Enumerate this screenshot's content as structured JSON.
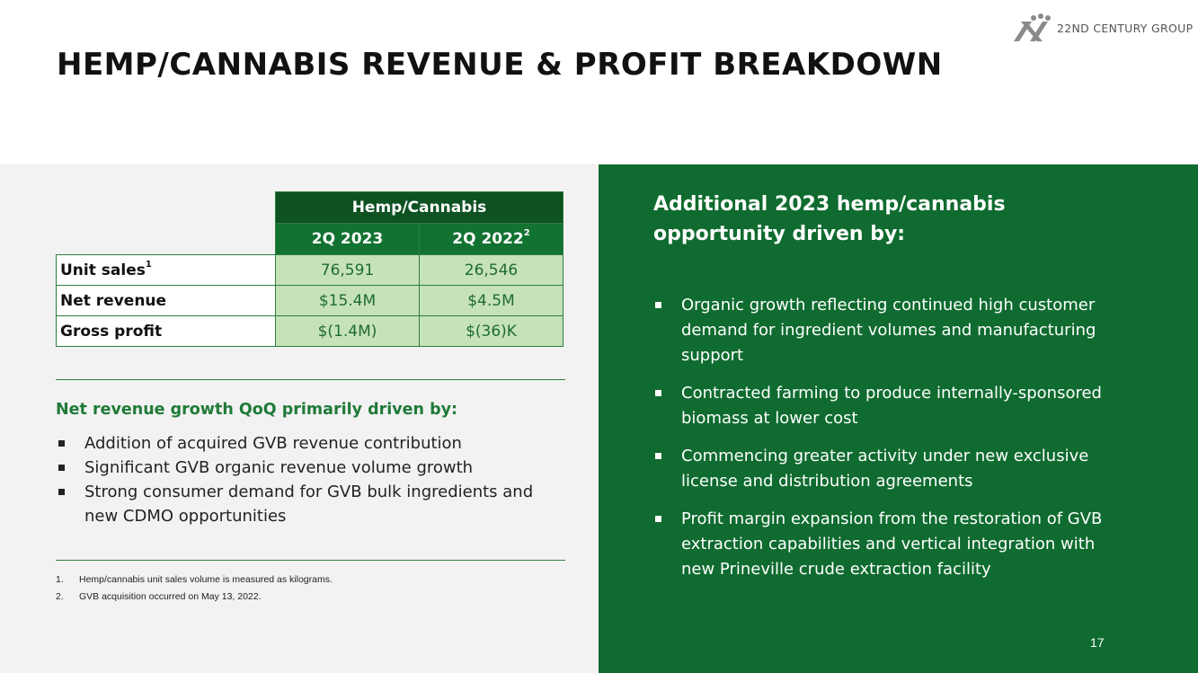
{
  "header": {
    "title": "HEMP/CANNABIS REVENUE & PROFIT BREAKDOWN",
    "logo_text": "22ND CENTURY GROUP"
  },
  "table": {
    "group_header": "Hemp/Cannabis",
    "columns": [
      {
        "label": "2Q 2023",
        "sup": ""
      },
      {
        "label": "2Q 2022",
        "sup": "2"
      }
    ],
    "rows": [
      {
        "label": "Unit sales",
        "sup": "1",
        "values": [
          "76,591",
          "26,546"
        ]
      },
      {
        "label": "Net revenue",
        "sup": "",
        "values": [
          "$15.4M",
          "$4.5M"
        ]
      },
      {
        "label": "Gross profit",
        "sup": "",
        "values": [
          "$(1.4M)",
          "$(36)K"
        ]
      }
    ]
  },
  "left": {
    "heading": "Net revenue growth QoQ primarily driven by:",
    "bullets": [
      "Addition of acquired GVB revenue contribution",
      "Significant GVB organic revenue volume growth",
      "Strong consumer demand for GVB bulk ingredients and new CDMO opportunities"
    ],
    "footnotes": [
      {
        "num": "1.",
        "text": "Hemp/cannabis unit sales volume is measured as kilograms."
      },
      {
        "num": "2.",
        "text": "GVB acquisition occurred on May 13, 2022."
      }
    ]
  },
  "right": {
    "heading": "Additional 2023 hemp/cannabis opportunity driven by:",
    "bullets": [
      "Organic growth reflecting continued high customer demand for ingredient volumes and manufacturing support",
      "Contracted farming to produce internally-sponsored biomass at lower cost",
      "Commencing greater activity under new exclusive license and distribution agreements",
      "Profit margin expansion from the restoration of GVB extraction capabilities and vertical integration with new Prineville crude extraction facility"
    ]
  },
  "page_number": "17",
  "colors": {
    "brand_green": "#0f6b2f",
    "table_header_dark": "#0e5222",
    "table_cell_green": "#c6e2b8",
    "heading_green": "#1f7a38"
  }
}
